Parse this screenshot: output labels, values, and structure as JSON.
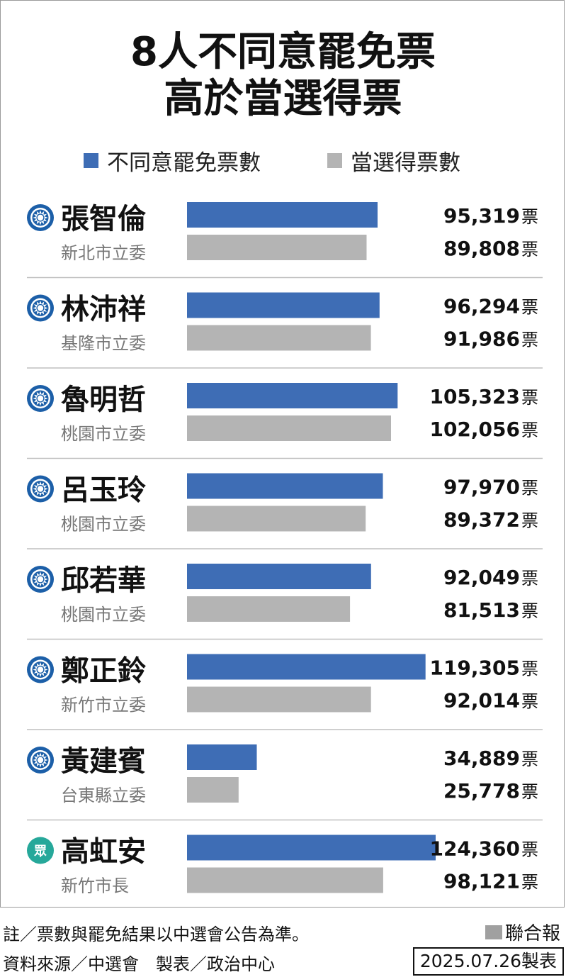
{
  "title": {
    "line1": "8人不同意罷免票",
    "line2": "高於當選得票"
  },
  "legend": {
    "recall_against": "不同意罷免票數",
    "elected": "當選得票數"
  },
  "colors": {
    "recall_against": "#3E6DB5",
    "elected": "#B4B4B4",
    "kmt_badge": "#1C5FA8",
    "tpp_badge": "#26A89A"
  },
  "unit": "票",
  "chart_data": {
    "type": "bar",
    "orientation": "horizontal",
    "categories": [
      "張智倫",
      "林沛祥",
      "魯明哲",
      "呂玉玲",
      "邱若華",
      "鄭正鈴",
      "黃建賓",
      "高虹安"
    ],
    "subtitles": [
      "新北市立委",
      "基隆市立委",
      "桃園市立委",
      "桃園市立委",
      "桃園市立委",
      "新竹市立委",
      "台東縣立委",
      "新竹市長"
    ],
    "party_badges": [
      "kmt-emblem-icon",
      "kmt-emblem-icon",
      "kmt-emblem-icon",
      "kmt-emblem-icon",
      "kmt-emblem-icon",
      "kmt-emblem-icon",
      "kmt-emblem-icon",
      "tpp-emblem-icon"
    ],
    "series": [
      {
        "name": "不同意罷免票數",
        "values": [
          95319,
          96294,
          105323,
          97970,
          92049,
          119305,
          34889,
          124360
        ],
        "labels": [
          "95,319",
          "96,294",
          "105,323",
          "97,970",
          "92,049",
          "119,305",
          "34,889",
          "124,360"
        ]
      },
      {
        "name": "當選得票數",
        "values": [
          89808,
          91986,
          102056,
          89372,
          81513,
          92014,
          25778,
          98121
        ],
        "labels": [
          "89,808",
          "91,986",
          "102,056",
          "89,372",
          "81,513",
          "92,014",
          "25,778",
          "98,121"
        ]
      }
    ],
    "xlim": [
      0,
      124360
    ],
    "grid": false,
    "legend_position": "top"
  },
  "footer": {
    "note": "註／票數與罷免結果以中選會公告為準。",
    "source": "資料來源／中選會　製表／政治中心",
    "brand": "聯合報",
    "date": "2025.07.26製表"
  }
}
